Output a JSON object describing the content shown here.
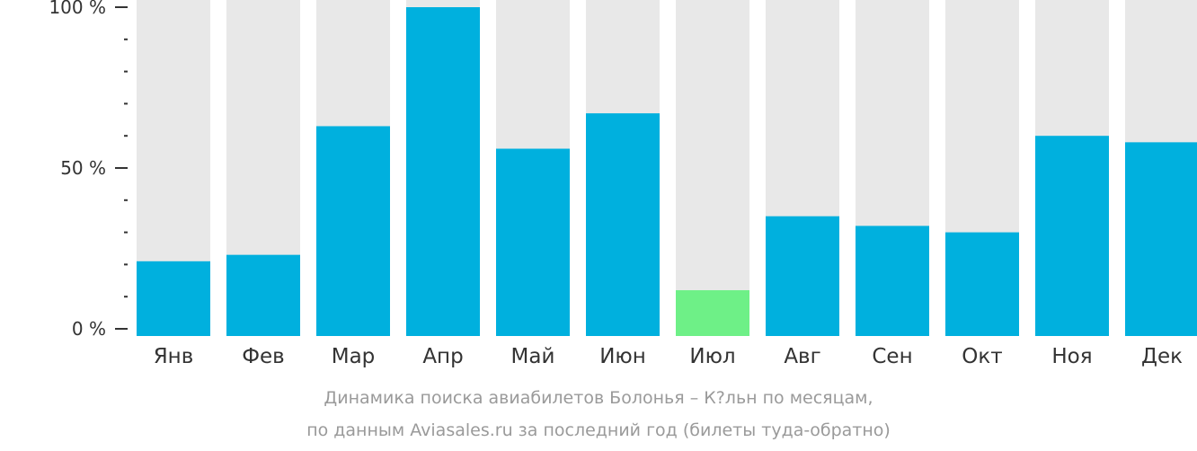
{
  "chart_data": {
    "type": "bar",
    "categories": [
      "Янв",
      "Фев",
      "Мар",
      "Апр",
      "Май",
      "Июн",
      "Июл",
      "Авг",
      "Сен",
      "Окт",
      "Ноя",
      "Дек"
    ],
    "values": [
      21,
      23,
      63,
      100,
      56,
      67,
      12,
      35,
      32,
      30,
      60,
      58
    ],
    "yticks": [
      {
        "value": 0,
        "label": "0 %"
      },
      {
        "value": 50,
        "label": "50 %"
      },
      {
        "value": 100,
        "label": "100 %"
      }
    ],
    "ylim": [
      0,
      100
    ],
    "highlight_index": 6,
    "colors": {
      "bar": "#00b0de",
      "highlight": "#6ef087",
      "background_bar": "#e8e8e8",
      "axis": "#333333"
    }
  },
  "caption": {
    "line1": "Динамика поиска авиабилетов Болонья – К?льн по месяцам,",
    "line2": "по данным Aviasales.ru за последний год (билеты туда-обратно)"
  }
}
